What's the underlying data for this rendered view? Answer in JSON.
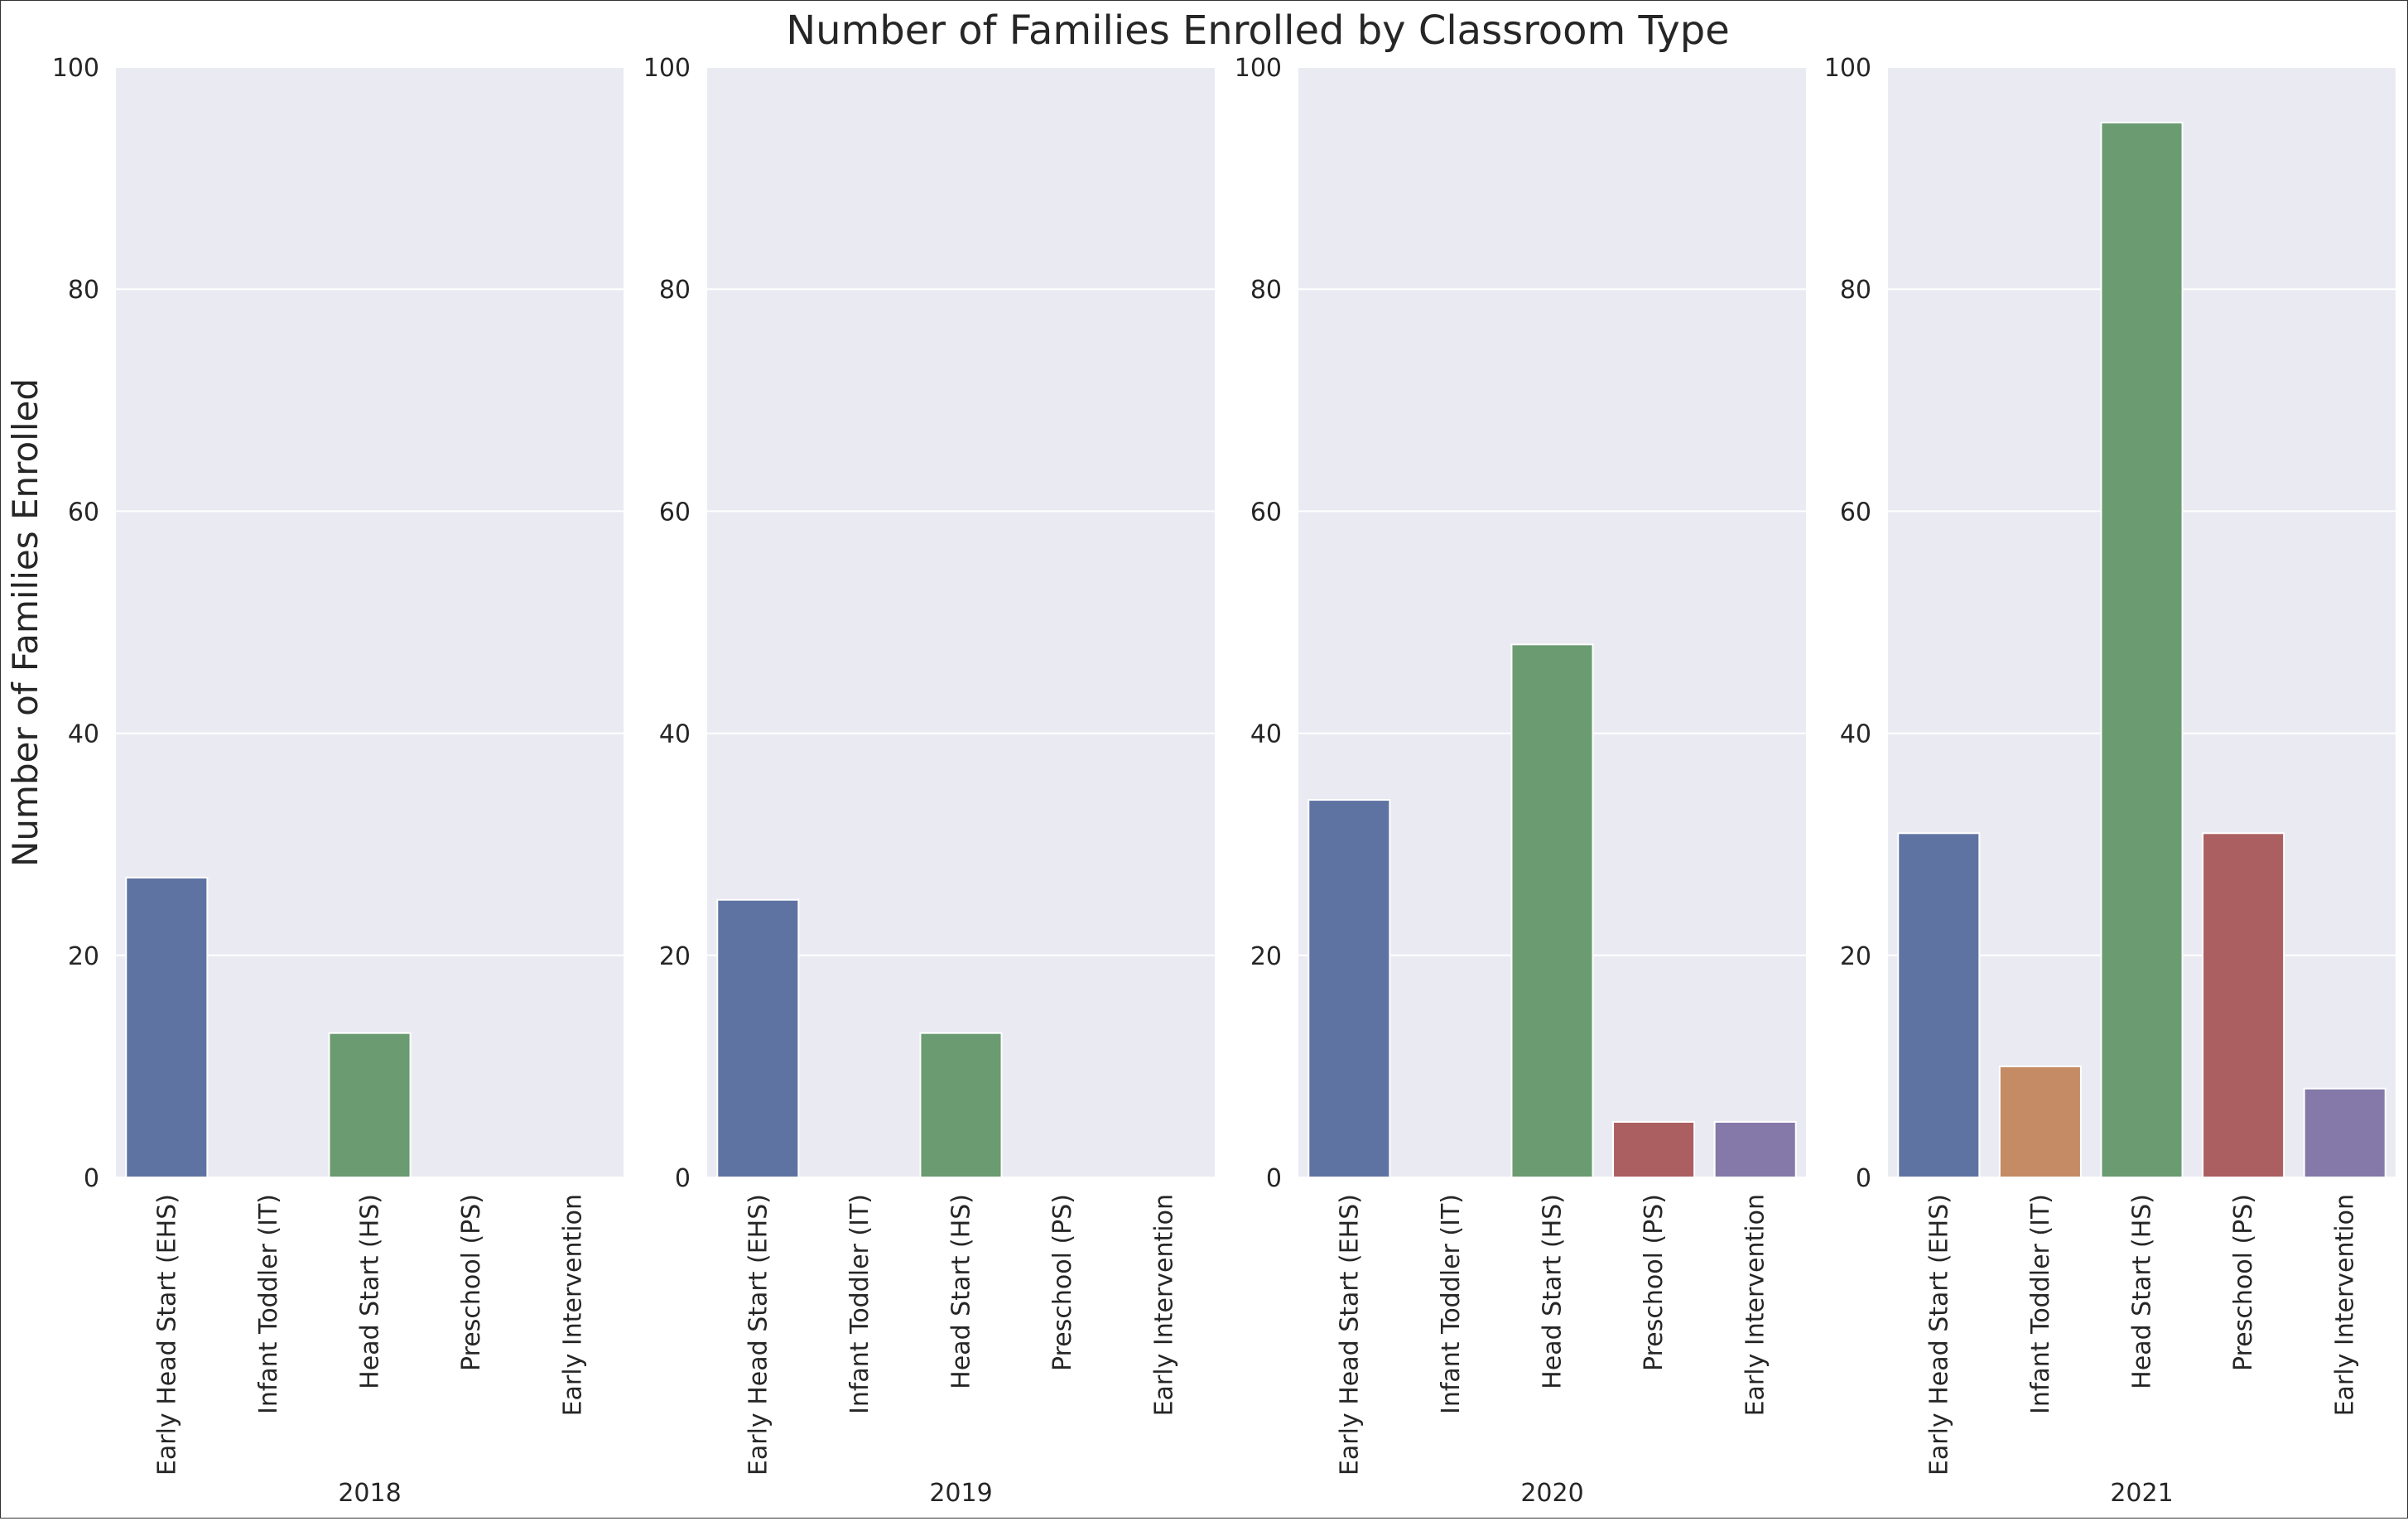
{
  "chart_data": {
    "type": "bar",
    "title": "Number of Families Enrolled by Classroom Type",
    "ylabel": "Number of Families Enrolled",
    "ylim": [
      0,
      100
    ],
    "yticks": [
      "0",
      "20",
      "40",
      "60",
      "80",
      "100"
    ],
    "grid": true,
    "categories": [
      "Early Head Start (EHS)",
      "Infant Toddler (IT)",
      "Head Start (HS)",
      "Preschool (PS)",
      "Early Intervention"
    ],
    "category_colors": [
      "#5f73a3",
      "#c48b64",
      "#6a9b71",
      "#ab5f61",
      "#8479a8"
    ],
    "panels": [
      {
        "label": "2018",
        "values": [
          27,
          0,
          13,
          0,
          0
        ]
      },
      {
        "label": "2019",
        "values": [
          25,
          0,
          13,
          0,
          0
        ]
      },
      {
        "label": "2020",
        "values": [
          34,
          0,
          48,
          5,
          5
        ]
      },
      {
        "label": "2021",
        "values": [
          31,
          10,
          95,
          31,
          8
        ]
      }
    ],
    "background_color": "#eaeaf2",
    "grid_color": "#ffffff"
  }
}
